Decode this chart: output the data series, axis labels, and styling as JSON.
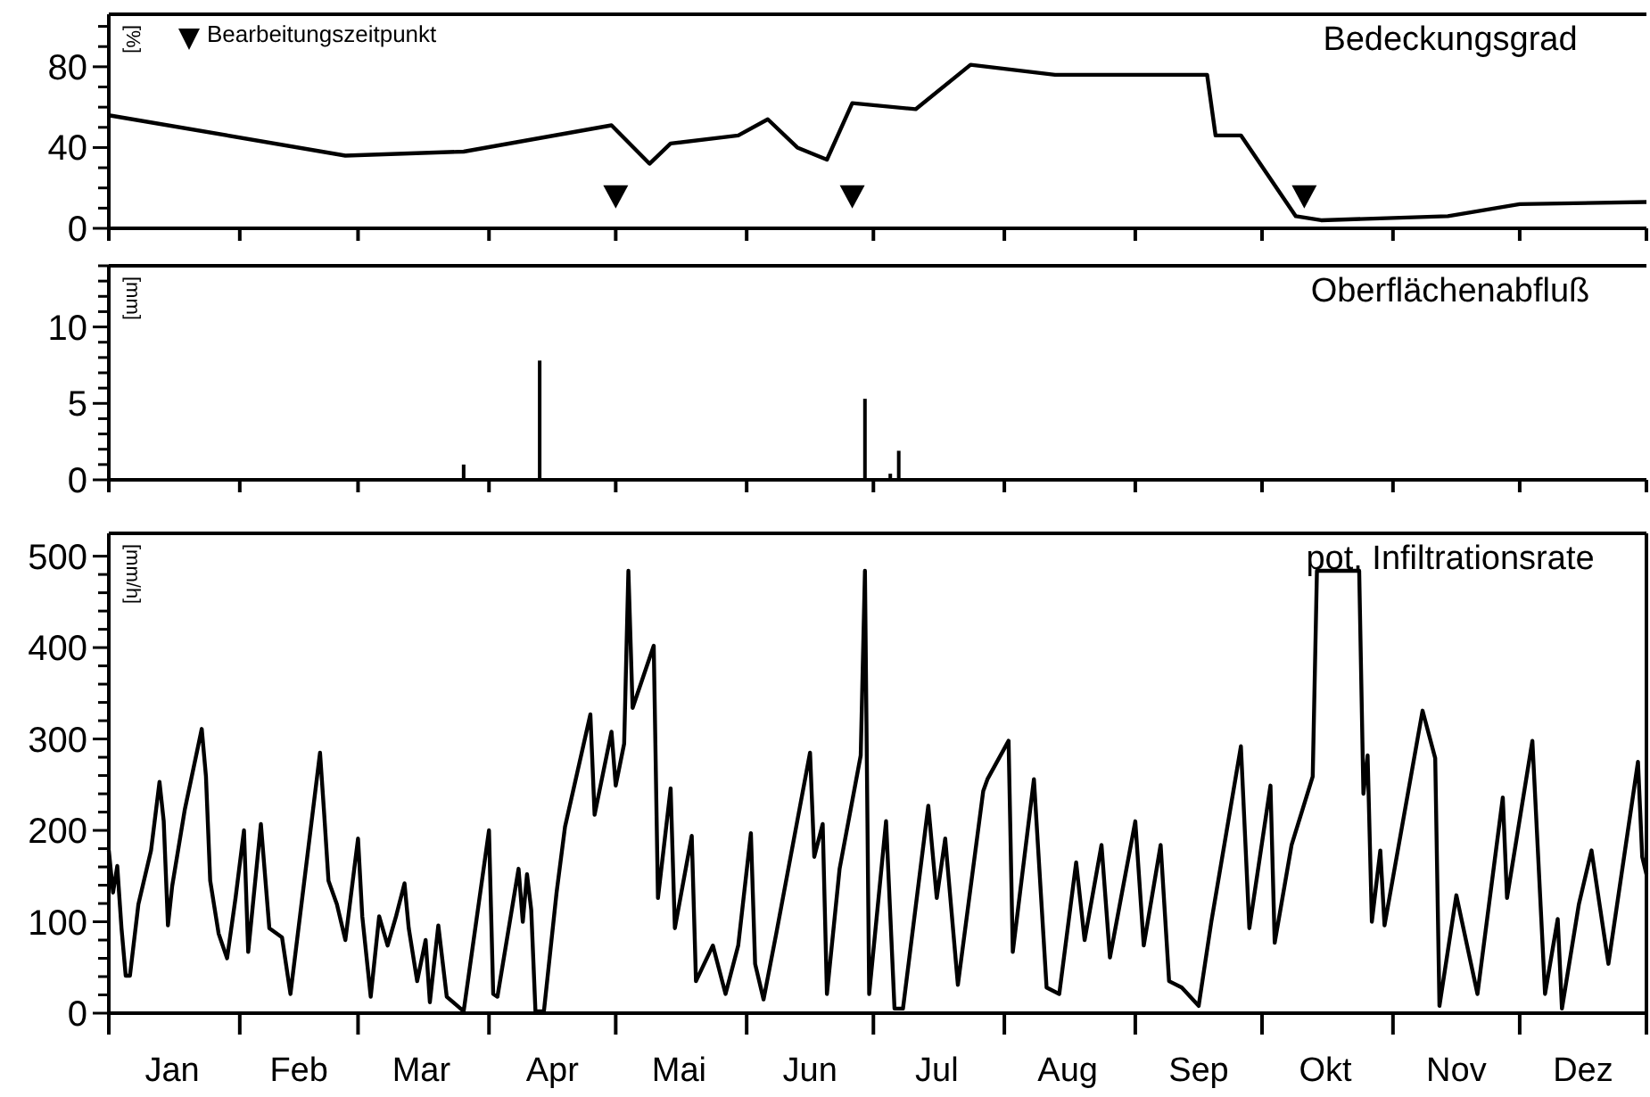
{
  "chart_data": [
    {
      "type": "line",
      "title": "Bedeckungsgrad",
      "ylabel": "[%]",
      "xlim": [
        "--01-01",
        "--12-31"
      ],
      "ylim": [
        0,
        106
      ],
      "tick_labels": "y",
      "legend": "top left",
      "xticks": [
        {
          "value": "--01-01",
          "label": null
        },
        {
          "value": "--02-01",
          "label": null
        },
        {
          "value": "--03-01",
          "label": null
        },
        {
          "value": "--04-01",
          "label": null
        },
        {
          "value": "--05-01",
          "label": null
        },
        {
          "value": "--06-01",
          "label": null
        },
        {
          "value": "--07-01",
          "label": null
        },
        {
          "value": "--08-01",
          "label": null
        },
        {
          "value": "--09-01",
          "label": null
        },
        {
          "value": "--10-01",
          "label": null
        },
        {
          "value": "--11-01",
          "label": null
        },
        {
          "value": "--12-01",
          "label": null
        },
        {
          "value": "--12-31",
          "label": null
        }
      ],
      "yticks": [
        0,
        {
          "value": 10,
          "label": null
        },
        {
          "value": 20,
          "label": null
        },
        {
          "value": 30,
          "label": null
        },
        40,
        {
          "value": 50,
          "label": null
        },
        {
          "value": 60,
          "label": null
        },
        {
          "value": 70,
          "label": null
        },
        80,
        {
          "value": 90,
          "label": null
        },
        {
          "value": 100,
          "label": null
        }
      ],
      "series": [
        {
          "color": "#000000",
          "x": [
            "--01-01",
            "--02-26",
            "--03-26",
            "--04-30",
            "--05-09",
            "--05-14",
            "--05-30",
            "--06-06",
            "--06-13",
            "--06-20",
            "--06-26",
            "--07-11",
            "--07-24",
            "--08-13",
            "--09-18",
            "--09-20",
            "--09-26",
            "--10-09",
            "--10-15",
            "--11-14",
            "--12-01",
            "--12-31"
          ],
          "values": [
            56,
            36,
            38,
            51,
            32,
            42,
            46,
            54,
            40,
            34,
            62,
            59,
            81,
            76,
            76,
            46,
            46,
            6,
            4,
            6,
            12,
            13
          ]
        },
        {
          "type": "scatter",
          "name": "Bearbeitungszeitpunkt",
          "marker": "triangle",
          "color": "#000000",
          "x": [
            "--05-01",
            "--06-26",
            "--10-11"
          ],
          "values": [
            16,
            16,
            16
          ]
        }
      ]
    },
    {
      "type": "bar",
      "title": "Oberflächenabfluß",
      "ylabel": "[mm]",
      "xlim": [
        "--01-01",
        "--12-31"
      ],
      "ylim": [
        0,
        14
      ],
      "tick_labels": "y",
      "xticks": [
        {
          "value": "--01-01",
          "label": null
        },
        {
          "value": "--02-01",
          "label": null
        },
        {
          "value": "--03-01",
          "label": null
        },
        {
          "value": "--04-01",
          "label": null
        },
        {
          "value": "--05-01",
          "label": null
        },
        {
          "value": "--06-01",
          "label": null
        },
        {
          "value": "--07-01",
          "label": null
        },
        {
          "value": "--08-01",
          "label": null
        },
        {
          "value": "--09-01",
          "label": null
        },
        {
          "value": "--10-01",
          "label": null
        },
        {
          "value": "--11-01",
          "label": null
        },
        {
          "value": "--12-01",
          "label": null
        },
        {
          "value": "--12-31",
          "label": null
        }
      ],
      "yticks": [
        0,
        {
          "value": 1,
          "label": null
        },
        {
          "value": 2,
          "label": null
        },
        {
          "value": 3,
          "label": null
        },
        {
          "value": 4,
          "label": null
        },
        5,
        {
          "value": 6,
          "label": null
        },
        {
          "value": 7,
          "label": null
        },
        {
          "value": 8,
          "label": null
        },
        {
          "value": 9,
          "label": null
        },
        10,
        {
          "value": 11,
          "label": null
        },
        {
          "value": 12,
          "label": null
        },
        {
          "value": 13,
          "label": null
        },
        {
          "value": 14,
          "label": null
        }
      ],
      "series": [
        {
          "color": "#000000",
          "x": [
            "--03-26",
            "--04-13",
            "--06-29",
            "--07-05",
            "--07-07"
          ],
          "values": [
            1.0,
            7.8,
            5.3,
            0.4,
            1.9
          ]
        }
      ]
    },
    {
      "type": "line",
      "title": "pot. Infiltrationsrate",
      "ylabel": "[mm/h]",
      "xlim": [
        "--01-01",
        "--12-31"
      ],
      "ylim": [
        0,
        525
      ],
      "xticks": [
        {
          "value": "--01-01",
          "label": null
        },
        {
          "value": "--01-16",
          "label": "Jan"
        },
        {
          "value": "--02-01",
          "label": null
        },
        {
          "value": "--02-15",
          "label": "Feb"
        },
        {
          "value": "--03-01",
          "label": null
        },
        {
          "value": "--03-16",
          "label": "Mar"
        },
        {
          "value": "--04-01",
          "label": null
        },
        {
          "value": "--04-16",
          "label": "Apr"
        },
        {
          "value": "--05-01",
          "label": null
        },
        {
          "value": "--05-16",
          "label": "Mai"
        },
        {
          "value": "--06-01",
          "label": null
        },
        {
          "value": "--06-16",
          "label": "Jun"
        },
        {
          "value": "--07-01",
          "label": null
        },
        {
          "value": "--07-16",
          "label": "Jul"
        },
        {
          "value": "--08-01",
          "label": null
        },
        {
          "value": "--08-16",
          "label": "Aug"
        },
        {
          "value": "--09-01",
          "label": null
        },
        {
          "value": "--09-16",
          "label": "Sep"
        },
        {
          "value": "--10-01",
          "label": null
        },
        {
          "value": "--10-16",
          "label": "Okt"
        },
        {
          "value": "--11-01",
          "label": null
        },
        {
          "value": "--11-16",
          "label": "Nov"
        },
        {
          "value": "--12-01",
          "label": null
        },
        {
          "value": "--12-16",
          "label": "Dez"
        },
        {
          "value": "--12-31",
          "label": null
        }
      ],
      "yticks": [
        0,
        {
          "value": 20,
          "label": null
        },
        {
          "value": 40,
          "label": null
        },
        {
          "value": 60,
          "label": null
        },
        {
          "value": 80,
          "label": null
        },
        100,
        {
          "value": 120,
          "label": null
        },
        {
          "value": 140,
          "label": null
        },
        {
          "value": 160,
          "label": null
        },
        {
          "value": 180,
          "label": null
        },
        200,
        {
          "value": 220,
          "label": null
        },
        {
          "value": 240,
          "label": null
        },
        {
          "value": 260,
          "label": null
        },
        {
          "value": 280,
          "label": null
        },
        300,
        {
          "value": 320,
          "label": null
        },
        {
          "value": 340,
          "label": null
        },
        {
          "value": 360,
          "label": null
        },
        {
          "value": 380,
          "label": null
        },
        400,
        {
          "value": 420,
          "label": null
        },
        {
          "value": 440,
          "label": null
        },
        {
          "value": 460,
          "label": null
        },
        {
          "value": 480,
          "label": null
        },
        500
      ],
      "series": [
        {
          "color": "#000000",
          "x": [
            "--01-01",
            "--01-02",
            "--01-03",
            "--01-04",
            "--01-05",
            "--01-06",
            "--01-08",
            "--01-11",
            "--01-13",
            "--01-14",
            "--01-15",
            "--01-16",
            "--01-19",
            "--01-23",
            "--01-24",
            "--01-25",
            "--01-27",
            "--01-29",
            "--01-31",
            "--02-02",
            "--02-03",
            "--02-06",
            "--02-08",
            "--02-11",
            "--02-13",
            "--02-20",
            "--02-21",
            "--02-22",
            "--02-24",
            "--02-26",
            "--03-01",
            "--03-02",
            "--03-04",
            "--03-06",
            "--03-08",
            "--03-10",
            "--03-12",
            "--03-13",
            "--03-15",
            "--03-17",
            "--03-18",
            "--03-20",
            "--03-22",
            "--03-26",
            "--04-01",
            "--04-02",
            "--04-03",
            "--04-08",
            "--04-09",
            "--04-10",
            "--04-11",
            "--04-12",
            "--04-14",
            "--04-17",
            "--04-19",
            "--04-25",
            "--04-26",
            "--04-30",
            "--05-01",
            "--05-03",
            "--05-04",
            "--05-05",
            "--05-10",
            "--05-11",
            "--05-14",
            "--05-15",
            "--05-19",
            "--05-20",
            "--05-24",
            "--05-27",
            "--05-30",
            "--06-02",
            "--06-03",
            "--06-05",
            "--06-08",
            "--06-16",
            "--06-17",
            "--06-19",
            "--06-20",
            "--06-23",
            "--06-28",
            "--06-29",
            "--06-30",
            "--07-04",
            "--07-06",
            "--07-08",
            "--07-14",
            "--07-16",
            "--07-18",
            "--07-21",
            "--07-27",
            "--07-28",
            "--08-02",
            "--08-03",
            "--08-08",
            "--08-11",
            "--08-14",
            "--08-18",
            "--08-20",
            "--08-24",
            "--08-26",
            "--09-01",
            "--09-03",
            "--09-07",
            "--09-09",
            "--09-12",
            "--09-16",
            "--09-19",
            "--09-26",
            "--09-28",
            "--10-03",
            "--10-04",
            "--10-08",
            "--10-13",
            "--10-14",
            "--10-24",
            "--10-25",
            "--10-26",
            "--10-27",
            "--10-29",
            "--10-30",
            "--11-08",
            "--11-11",
            "--11-12",
            "--11-16",
            "--11-21",
            "--11-27",
            "--11-28",
            "--12-04",
            "--12-07",
            "--12-10",
            "--12-11",
            "--12-15",
            "--12-18",
            "--12-22",
            "--12-29",
            "--12-30",
            "--12-31"
          ],
          "values": [
            178,
            132,
            161,
            93,
            41,
            41,
            119,
            178,
            253,
            210,
            96,
            139,
            223,
            311,
            259,
            145,
            87,
            60,
            126,
            200,
            67,
            207,
            93,
            83,
            21,
            285,
            217,
            145,
            119,
            80,
            191,
            106,
            18,
            106,
            74,
            106,
            142,
            93,
            35,
            80,
            12,
            96,
            18,
            2,
            200,
            21,
            18,
            158,
            100,
            152,
            113,
            2,
            2,
            132,
            204,
            327,
            217,
            308,
            249,
            295,
            484,
            334,
            402,
            126,
            246,
            93,
            194,
            35,
            74,
            21,
            74,
            197,
            54,
            15,
            87,
            285,
            171,
            207,
            21,
            158,
            282,
            484,
            21,
            210,
            5,
            5,
            227,
            126,
            191,
            31,
            243,
            256,
            298,
            67,
            256,
            28,
            21,
            165,
            80,
            184,
            61,
            210,
            74,
            184,
            35,
            28,
            8,
            100,
            292,
            93,
            249,
            77,
            184,
            259,
            484,
            484,
            240,
            282,
            100,
            178,
            96,
            331,
            279,
            8,
            129,
            21,
            236,
            126,
            298,
            21,
            103,
            5,
            119,
            178,
            54,
            275,
            171,
            152
          ]
        }
      ]
    }
  ]
}
